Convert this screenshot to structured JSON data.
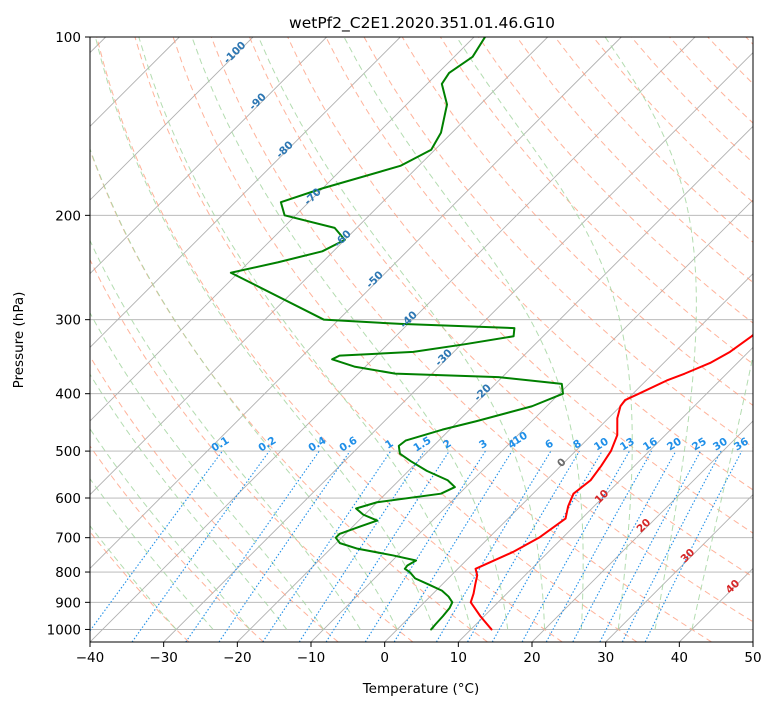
{
  "chart_data": {
    "type": "skew-t",
    "title": "wetPf2_C2E1.2020.351.01.46.G10",
    "xlabel": "Temperature (°C)",
    "ylabel": "Pressure (hPa)",
    "xlim": [
      -40,
      50
    ],
    "ylim": [
      1050,
      100
    ],
    "y_scale": "log",
    "grid": true,
    "x_ticks": [
      "−40",
      "−30",
      "−20",
      "−10",
      "0",
      "10",
      "20",
      "30",
      "40",
      "50"
    ],
    "y_ticks": [
      "100",
      "200",
      "300",
      "400",
      "500",
      "600",
      "700",
      "800",
      "900",
      "1000"
    ],
    "series": [
      {
        "role": "temperature",
        "color": "#ff0000",
        "points": [
          [
            1000,
            12.8
          ],
          [
            950,
            9.5
          ],
          [
            900,
            6.3
          ],
          [
            870,
            5.5
          ],
          [
            840,
            4.5
          ],
          [
            810,
            3.5
          ],
          [
            790,
            2.4
          ],
          [
            770,
            3.5
          ],
          [
            740,
            5.2
          ],
          [
            700,
            6.8
          ],
          [
            650,
            7.8
          ],
          [
            620,
            6.5
          ],
          [
            590,
            5.5
          ],
          [
            560,
            6.0
          ],
          [
            530,
            5.5
          ],
          [
            500,
            4.8
          ],
          [
            470,
            3.5
          ],
          [
            440,
            1.2
          ],
          [
            420,
            0.0
          ],
          [
            410,
            -0.2
          ],
          [
            400,
            0.8
          ],
          [
            380,
            2.8
          ],
          [
            370,
            4.3
          ],
          [
            355,
            6.3
          ],
          [
            340,
            7.5
          ],
          [
            320,
            8.3
          ],
          [
            300,
            8.8
          ],
          [
            270,
            7.5
          ],
          [
            250,
            5.5
          ],
          [
            230,
            3.6
          ],
          [
            200,
            0.8
          ],
          [
            190,
            -0.8
          ],
          [
            175,
            -4.7
          ],
          [
            165,
            -8.5
          ],
          [
            155,
            -13.2
          ],
          [
            145,
            -16.2
          ],
          [
            135,
            -20.5
          ],
          [
            125,
            -23.7
          ],
          [
            115,
            -27.0
          ],
          [
            108,
            -28.3
          ],
          [
            100,
            -28.5
          ]
        ]
      },
      {
        "role": "dewpoint",
        "color": "#008000",
        "points": [
          [
            1000,
            4.6
          ],
          [
            980,
            4.5
          ],
          [
            950,
            4.4
          ],
          [
            920,
            4.2
          ],
          [
            900,
            3.8
          ],
          [
            880,
            2.5
          ],
          [
            860,
            0.8
          ],
          [
            840,
            -1.8
          ],
          [
            820,
            -4.5
          ],
          [
            800,
            -6.1
          ],
          [
            790,
            -7.2
          ],
          [
            780,
            -7.3
          ],
          [
            765,
            -6.8
          ],
          [
            750,
            -10.6
          ],
          [
            730,
            -16.5
          ],
          [
            715,
            -19.5
          ],
          [
            700,
            -20.8
          ],
          [
            690,
            -20.8
          ],
          [
            670,
            -19.0
          ],
          [
            655,
            -17.5
          ],
          [
            640,
            -20.2
          ],
          [
            625,
            -22.0
          ],
          [
            610,
            -20.0
          ],
          [
            590,
            -12.5
          ],
          [
            575,
            -11.5
          ],
          [
            560,
            -13.4
          ],
          [
            540,
            -17.5
          ],
          [
            520,
            -21.0
          ],
          [
            505,
            -23.5
          ],
          [
            490,
            -24.7
          ],
          [
            480,
            -24.5
          ],
          [
            460,
            -21.0
          ],
          [
            445,
            -17.5
          ],
          [
            420,
            -12.0
          ],
          [
            400,
            -9.5
          ],
          [
            385,
            -11.0
          ],
          [
            375,
            -20.5
          ],
          [
            370,
            -35.0
          ],
          [
            360,
            -41.5
          ],
          [
            350,
            -45.5
          ],
          [
            345,
            -45.0
          ],
          [
            340,
            -35.5
          ],
          [
            330,
            -29.5
          ],
          [
            320,
            -24.0
          ],
          [
            310,
            -25.0
          ],
          [
            305,
            -41.0
          ],
          [
            300,
            -52.0
          ],
          [
            250,
            -71.0
          ],
          [
            240,
            -66.0
          ],
          [
            230,
            -61.5
          ],
          [
            220,
            -60.0
          ],
          [
            210,
            -63.0
          ],
          [
            200,
            -71.5
          ],
          [
            190,
            -73.8
          ],
          [
            180,
            -70.0
          ],
          [
            165,
            -62.5
          ],
          [
            155,
            -60.5
          ],
          [
            145,
            -61.5
          ],
          [
            130,
            -64.5
          ],
          [
            120,
            -68.0
          ],
          [
            115,
            -68.5
          ],
          [
            108,
            -67.5
          ],
          [
            100,
            -68.5
          ]
        ]
      }
    ],
    "dry_adiabat_labels": [
      "-100",
      "-90",
      "-80",
      "-70",
      "-60",
      "-50",
      "-40",
      "-30",
      "-20"
    ],
    "mixing_ratio_labels": [
      "0.1",
      "0.2",
      "0.4",
      "0.6",
      "1",
      "1.5",
      "2",
      "3",
      "4",
      "6",
      "8",
      "10",
      "13",
      "16",
      "20",
      "25",
      "30",
      "36"
    ],
    "moist_adiabat_labels": [
      "10"
    ],
    "isotherm_labels": [
      "0",
      "10",
      "20",
      "30",
      "40"
    ],
    "colors": {
      "temperature": "#ff0000",
      "dewpoint": "#008000",
      "dry_adiabat": "#ff9a7a",
      "moist_adiabat": "#a6d6a2",
      "mixing_ratio": "#1f8fe8",
      "dry_adiabat_label": "#2d77b3",
      "mixing_ratio_label": "#1f8fe8",
      "isotherm_label_cold": "#6a6a6a",
      "isotherm_label_warm": "#d62728",
      "grid": "#b0b0b0"
    }
  }
}
